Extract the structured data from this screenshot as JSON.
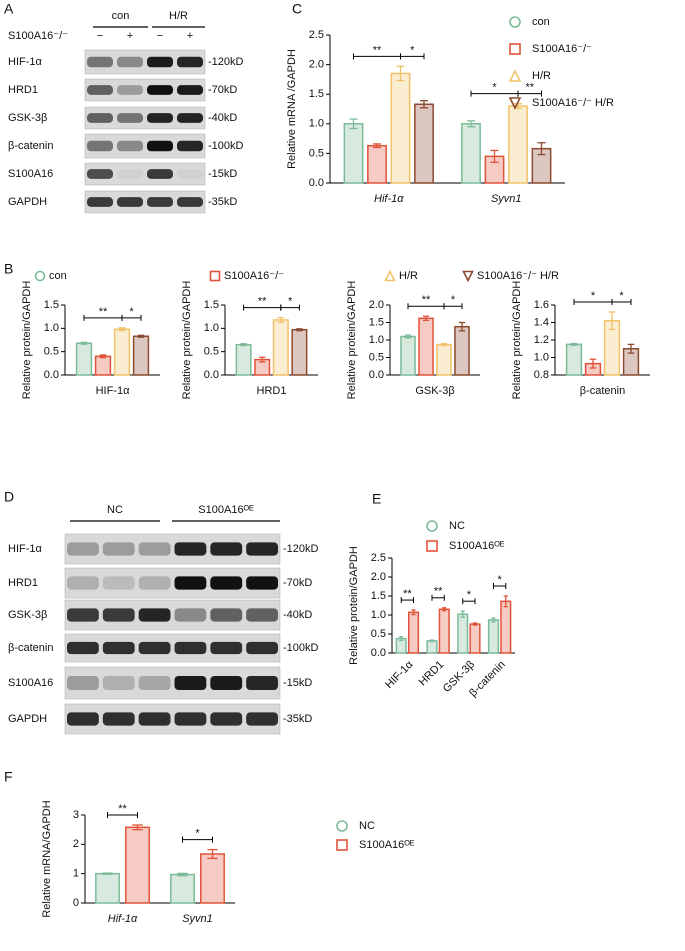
{
  "panel_labels": [
    "A",
    "B",
    "C",
    "D",
    "E",
    "F"
  ],
  "blots": [
    {
      "groups": [
        "con",
        "H/R"
      ],
      "treatment": "S100A16⁻/⁻",
      "signs": [
        "−",
        "+",
        "−",
        "+"
      ],
      "rows": [
        {
          "label": "HIF-1α",
          "size": "-120kD"
        },
        {
          "label": "HRD1",
          "size": "-70kD"
        },
        {
          "label": "GSK-3β",
          "size": "-40kD"
        },
        {
          "label": "β-catenin",
          "size": "-100kD"
        },
        {
          "label": "S100A16",
          "size": "-15kD"
        },
        {
          "label": "GAPDH",
          "size": "-35kD"
        }
      ]
    },
    {
      "groups": [
        "NC",
        "S100A16ᴼᴱ"
      ],
      "rows": [
        {
          "label": "HIF-1α",
          "size": "-120kD"
        },
        {
          "label": "HRD1",
          "size": "-70kD"
        },
        {
          "label": "GSK-3β",
          "size": "-40kD"
        },
        {
          "label": "β-catenin",
          "size": "-100kD"
        },
        {
          "label": "S100A16",
          "size": "-15kD"
        },
        {
          "label": "GAPDH",
          "size": "-35kD"
        }
      ]
    }
  ],
  "chart_data": [
    {
      "type": "bar",
      "ylabel": "Relative  mRNA /GAPDH",
      "categories": [
        "Hif-1α",
        "Syvn1"
      ],
      "italic_categories": true,
      "ylim": [
        0,
        2.5
      ],
      "yticks": [
        {
          "value": 0,
          "label": "0.0"
        },
        0.5,
        {
          "value": 1,
          "label": "1.0"
        },
        1.5,
        {
          "value": 2,
          "label": "2.0"
        },
        2.5
      ],
      "series": [
        {
          "name": "con",
          "color": "#7dbb98",
          "marker": "circle",
          "values": [
            1.0,
            1.0
          ],
          "errors": [
            0.08,
            0.05
          ]
        },
        {
          "name": "S100A16⁻/⁻",
          "color": "#e0533a",
          "marker": "square",
          "values": [
            0.63,
            0.45
          ],
          "errors": [
            0.03,
            0.1
          ]
        },
        {
          "name": "H/R",
          "color": "#f2c26b",
          "marker": "triangle",
          "values": [
            1.85,
            1.3
          ],
          "errors": [
            0.12,
            0.04
          ]
        },
        {
          "name": "S100A16⁻/⁻ H/R",
          "color": "#8b4a2f",
          "marker": "triangle-down",
          "values": [
            1.33,
            0.58
          ],
          "errors": [
            0.06,
            0.1
          ]
        }
      ],
      "annotations": [
        {
          "text": "**",
          "category": 0,
          "series": [
            0,
            2
          ]
        },
        {
          "text": "*",
          "category": 0,
          "series": [
            2,
            3
          ]
        },
        {
          "text": "*",
          "category": 1,
          "series": [
            0,
            2
          ]
        },
        {
          "text": "**",
          "category": 1,
          "series": [
            2,
            3
          ]
        }
      ],
      "legend": "right"
    },
    {
      "type": "bar",
      "ylabel": "Relative  protein/GAPDH",
      "categories": [
        "HIF-1α"
      ],
      "ylim": [
        0,
        1.5
      ],
      "yticks": [
        {
          "value": 0,
          "label": "0.0"
        },
        0.5,
        {
          "value": 1,
          "label": "1.0"
        },
        1.5
      ],
      "series": [
        {
          "name": "con",
          "color": "#7dbb98",
          "marker": "circle",
          "values": [
            0.68
          ],
          "errors": [
            0.02
          ]
        },
        {
          "name": "S100A16⁻/⁻",
          "color": "#e0533a",
          "marker": "square",
          "values": [
            0.4
          ],
          "errors": [
            0.03
          ]
        },
        {
          "name": "H/R",
          "color": "#f2c26b",
          "marker": "triangle",
          "values": [
            0.98
          ],
          "errors": [
            0.03
          ]
        },
        {
          "name": "S100A16⁻/⁻ H/R",
          "color": "#8b4a2f",
          "marker": "triangle-down",
          "values": [
            0.83
          ],
          "errors": [
            0.02
          ]
        }
      ],
      "annotations": [
        {
          "text": "**",
          "category": 0,
          "series": [
            0,
            2
          ]
        },
        {
          "text": "*",
          "category": 0,
          "series": [
            2,
            3
          ]
        }
      ],
      "legend": "top"
    },
    {
      "type": "bar",
      "ylabel": "Relative  protein/GAPDH",
      "categories": [
        "HRD1"
      ],
      "ylim": [
        0,
        1.5
      ],
      "yticks": [
        {
          "value": 0,
          "label": "0.0"
        },
        0.5,
        {
          "value": 1,
          "label": "1.0"
        },
        1.5
      ],
      "series": [
        {
          "name": "con",
          "color": "#7dbb98",
          "marker": "circle",
          "values": [
            0.65
          ],
          "errors": [
            0.02
          ]
        },
        {
          "name": "S100A16⁻/⁻",
          "color": "#e0533a",
          "marker": "square",
          "values": [
            0.33
          ],
          "errors": [
            0.05
          ]
        },
        {
          "name": "H/R",
          "color": "#f2c26b",
          "marker": "triangle",
          "values": [
            1.18
          ],
          "errors": [
            0.05
          ]
        },
        {
          "name": "S100A16⁻/⁻ H/R",
          "color": "#8b4a2f",
          "marker": "triangle-down",
          "values": [
            0.97
          ],
          "errors": [
            0.02
          ]
        }
      ],
      "annotations": [
        {
          "text": "**",
          "category": 0,
          "series": [
            0,
            2
          ]
        },
        {
          "text": "*",
          "category": 0,
          "series": [
            2,
            3
          ]
        }
      ]
    },
    {
      "type": "bar",
      "ylabel": "Relative  protein/GAPDH",
      "categories": [
        "GSK-3β"
      ],
      "ylim": [
        0,
        2.0
      ],
      "yticks": [
        {
          "value": 0,
          "label": "0.0"
        },
        0.5,
        {
          "value": 1,
          "label": "1.0"
        },
        1.5,
        {
          "value": 2,
          "label": "2.0"
        }
      ],
      "series": [
        {
          "name": "con",
          "color": "#7dbb98",
          "marker": "circle",
          "values": [
            1.1
          ],
          "errors": [
            0.04
          ]
        },
        {
          "name": "S100A16⁻/⁻",
          "color": "#e0533a",
          "marker": "square",
          "values": [
            1.62
          ],
          "errors": [
            0.06
          ]
        },
        {
          "name": "H/R",
          "color": "#f2c26b",
          "marker": "triangle",
          "values": [
            0.87
          ],
          "errors": [
            0.03
          ]
        },
        {
          "name": "S100A16⁻/⁻ H/R",
          "color": "#8b4a2f",
          "marker": "triangle-down",
          "values": [
            1.38
          ],
          "errors": [
            0.12
          ]
        }
      ],
      "annotations": [
        {
          "text": "**",
          "category": 0,
          "series": [
            0,
            2
          ]
        },
        {
          "text": "*",
          "category": 0,
          "series": [
            2,
            3
          ]
        }
      ]
    },
    {
      "type": "bar",
      "ylabel": "Relative  protein/GAPDH",
      "categories": [
        "β-catenin"
      ],
      "ylim": [
        0.8,
        1.6
      ],
      "yticks": [
        0.8,
        {
          "value": 1,
          "label": "1.0"
        },
        1.2,
        1.4,
        1.6
      ],
      "series": [
        {
          "name": "con",
          "color": "#7dbb98",
          "marker": "circle",
          "values": [
            1.15
          ],
          "errors": [
            0.01
          ]
        },
        {
          "name": "S100A16⁻/⁻",
          "color": "#e0533a",
          "marker": "square",
          "values": [
            0.93
          ],
          "errors": [
            0.05
          ]
        },
        {
          "name": "H/R",
          "color": "#f2c26b",
          "marker": "triangle",
          "values": [
            1.42
          ],
          "errors": [
            0.1
          ]
        },
        {
          "name": "S100A16⁻/⁻ H/R",
          "color": "#8b4a2f",
          "marker": "triangle-down",
          "values": [
            1.1
          ],
          "errors": [
            0.05
          ]
        }
      ],
      "annotations": [
        {
          "text": "*",
          "category": 0,
          "series": [
            0,
            2
          ]
        },
        {
          "text": "*",
          "category": 0,
          "series": [
            2,
            3
          ]
        }
      ]
    },
    {
      "type": "bar",
      "ylabel": "Relative protein/GAPDH",
      "categories": [
        "HIF-1α",
        "HRD1",
        "GSK-3β",
        "β-catenin"
      ],
      "rotate_categories": true,
      "ylim": [
        0,
        2.5
      ],
      "yticks": [
        {
          "value": 0,
          "label": "0.0"
        },
        0.5,
        {
          "value": 1,
          "label": "1.0"
        },
        1.5,
        {
          "value": 2,
          "label": "2.0"
        },
        2.5
      ],
      "series": [
        {
          "name": "NC",
          "color": "#7dbb98",
          "marker": "circle",
          "values": [
            0.38,
            0.32,
            1.02,
            0.87
          ],
          "errors": [
            0.05,
            0.02,
            0.08,
            0.05
          ]
        },
        {
          "name": "S100A16ᴼᴱ",
          "color": "#e0533a",
          "marker": "square",
          "values": [
            1.07,
            1.15,
            0.76,
            1.36
          ],
          "errors": [
            0.06,
            0.04,
            0.03,
            0.14
          ]
        }
      ],
      "annotations": [
        {
          "text": "**",
          "category": 0,
          "series": [
            0,
            1
          ]
        },
        {
          "text": "**",
          "category": 1,
          "series": [
            0,
            1
          ]
        },
        {
          "text": "*",
          "category": 2,
          "series": [
            0,
            1
          ]
        },
        {
          "text": "*",
          "category": 3,
          "series": [
            0,
            1
          ]
        }
      ],
      "legend": "top"
    },
    {
      "type": "bar",
      "ylabel": "Relative  mRNA/GAPDH",
      "categories": [
        "Hif-1α",
        "Syvn1"
      ],
      "italic_categories": true,
      "ylim": [
        0,
        3
      ],
      "yticks": [
        0,
        1,
        2,
        3
      ],
      "series": [
        {
          "name": "NC",
          "color": "#7dbb98",
          "marker": "circle",
          "values": [
            1.0,
            0.97
          ],
          "errors": [
            0.02,
            0.04
          ]
        },
        {
          "name": "S100A16ᴼᴱ",
          "color": "#e0533a",
          "marker": "square",
          "values": [
            2.58,
            1.67
          ],
          "errors": [
            0.08,
            0.15
          ]
        }
      ],
      "annotations": [
        {
          "text": "**",
          "category": 0,
          "series": [
            0,
            1
          ]
        },
        {
          "text": "*",
          "category": 1,
          "series": [
            0,
            1
          ]
        }
      ],
      "legend": "right"
    }
  ]
}
